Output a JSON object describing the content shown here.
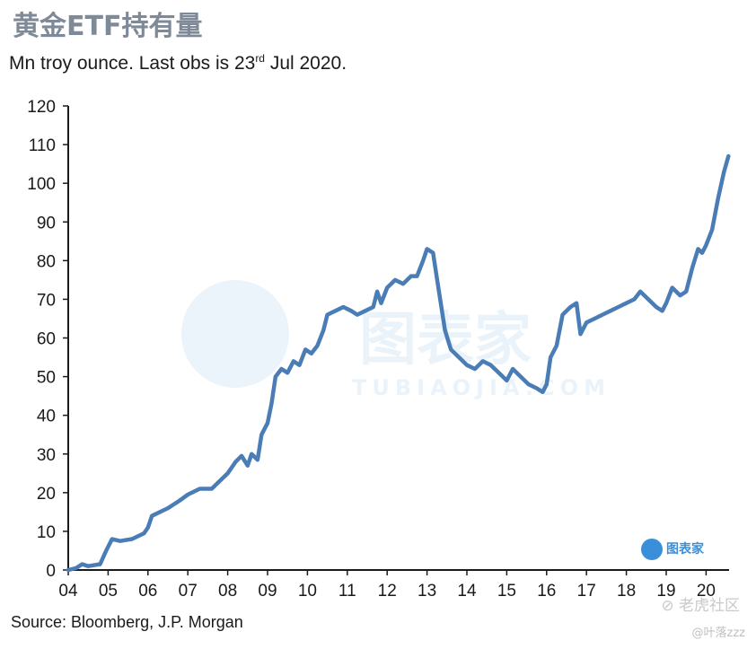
{
  "header": {
    "title": "黄金ETF持有量",
    "subtitle_main": "Mn troy ounce. Last obs is 23",
    "subtitle_sup": "rd",
    "subtitle_end": " Jul 2020."
  },
  "footer": {
    "source": "Source: Bloomberg, J.P. Morgan",
    "watermark_main": "⊘ 老虎社区",
    "watermark_user": "@叶落zzz",
    "logo_text": "图表家",
    "center_watermark": "图表家",
    "center_watermark_sub": "TUBIAOJIA.COM"
  },
  "chart_data": {
    "type": "line",
    "title": "黄金ETF持有量",
    "subtitle": "Mn troy ounce. Last obs is 23rd Jul 2020.",
    "xlabel": "",
    "ylabel": "",
    "ylim": [
      0,
      120
    ],
    "xlim": [
      2004.0,
      2020.75
    ],
    "grid": false,
    "yticks": [
      0,
      10,
      20,
      30,
      40,
      50,
      60,
      70,
      80,
      90,
      100,
      110,
      120
    ],
    "xticks": [
      {
        "value": 2004,
        "label": "04"
      },
      {
        "value": 2005,
        "label": "05"
      },
      {
        "value": 2006,
        "label": "06"
      },
      {
        "value": 2007,
        "label": "07"
      },
      {
        "value": 2008,
        "label": "08"
      },
      {
        "value": 2009,
        "label": "09"
      },
      {
        "value": 2010,
        "label": "10"
      },
      {
        "value": 2011,
        "label": "11"
      },
      {
        "value": 2012,
        "label": "12"
      },
      {
        "value": 2013,
        "label": "13"
      },
      {
        "value": 2014,
        "label": "14"
      },
      {
        "value": 2015,
        "label": "15"
      },
      {
        "value": 2016,
        "label": "16"
      },
      {
        "value": 2017,
        "label": "17"
      },
      {
        "value": 2018,
        "label": "18"
      },
      {
        "value": 2019,
        "label": "19"
      },
      {
        "value": 2020,
        "label": "20"
      }
    ],
    "series": [
      {
        "color": "#4a7db5",
        "points": [
          [
            2004.0,
            0
          ],
          [
            2004.2,
            0.5
          ],
          [
            2004.35,
            1.5
          ],
          [
            2004.5,
            1
          ],
          [
            2004.8,
            1.5
          ],
          [
            2004.95,
            5
          ],
          [
            2005.1,
            8
          ],
          [
            2005.3,
            7.5
          ],
          [
            2005.6,
            8
          ],
          [
            2005.9,
            9.5
          ],
          [
            2006.0,
            11
          ],
          [
            2006.1,
            14
          ],
          [
            2006.3,
            15
          ],
          [
            2006.5,
            16
          ],
          [
            2006.8,
            18
          ],
          [
            2007.0,
            19.5
          ],
          [
            2007.3,
            21
          ],
          [
            2007.6,
            21
          ],
          [
            2007.8,
            23
          ],
          [
            2008.0,
            25
          ],
          [
            2008.2,
            28
          ],
          [
            2008.35,
            29.5
          ],
          [
            2008.5,
            27
          ],
          [
            2008.6,
            30
          ],
          [
            2008.75,
            28.5
          ],
          [
            2008.85,
            35
          ],
          [
            2009.0,
            38
          ],
          [
            2009.1,
            43
          ],
          [
            2009.2,
            50
          ],
          [
            2009.35,
            52
          ],
          [
            2009.5,
            51
          ],
          [
            2009.65,
            54
          ],
          [
            2009.8,
            53
          ],
          [
            2009.95,
            57
          ],
          [
            2010.1,
            56
          ],
          [
            2010.25,
            58
          ],
          [
            2010.4,
            62
          ],
          [
            2010.5,
            66
          ],
          [
            2010.7,
            67
          ],
          [
            2010.9,
            68
          ],
          [
            2011.1,
            67
          ],
          [
            2011.25,
            66
          ],
          [
            2011.45,
            67
          ],
          [
            2011.65,
            68
          ],
          [
            2011.75,
            72
          ],
          [
            2011.85,
            69
          ],
          [
            2012.0,
            73
          ],
          [
            2012.2,
            75
          ],
          [
            2012.4,
            74
          ],
          [
            2012.6,
            76
          ],
          [
            2012.75,
            76
          ],
          [
            2012.9,
            80
          ],
          [
            2013.0,
            83
          ],
          [
            2013.15,
            82
          ],
          [
            2013.3,
            72
          ],
          [
            2013.45,
            62
          ],
          [
            2013.6,
            57
          ],
          [
            2013.8,
            55
          ],
          [
            2014.0,
            53
          ],
          [
            2014.2,
            52
          ],
          [
            2014.4,
            54
          ],
          [
            2014.6,
            53
          ],
          [
            2014.8,
            51
          ],
          [
            2015.0,
            49
          ],
          [
            2015.15,
            52
          ],
          [
            2015.35,
            50
          ],
          [
            2015.55,
            48
          ],
          [
            2015.75,
            47
          ],
          [
            2015.9,
            46
          ],
          [
            2016.0,
            48
          ],
          [
            2016.1,
            55
          ],
          [
            2016.25,
            58
          ],
          [
            2016.4,
            66
          ],
          [
            2016.6,
            68
          ],
          [
            2016.75,
            69
          ],
          [
            2016.85,
            61
          ],
          [
            2017.0,
            64
          ],
          [
            2017.2,
            65
          ],
          [
            2017.4,
            66
          ],
          [
            2017.6,
            67
          ],
          [
            2017.8,
            68
          ],
          [
            2018.0,
            69
          ],
          [
            2018.2,
            70
          ],
          [
            2018.35,
            72
          ],
          [
            2018.55,
            70
          ],
          [
            2018.75,
            68
          ],
          [
            2018.9,
            67
          ],
          [
            2019.0,
            69
          ],
          [
            2019.15,
            73
          ],
          [
            2019.35,
            71
          ],
          [
            2019.5,
            72
          ],
          [
            2019.65,
            78
          ],
          [
            2019.8,
            83
          ],
          [
            2019.9,
            82
          ],
          [
            2020.0,
            84
          ],
          [
            2020.15,
            88
          ],
          [
            2020.3,
            96
          ],
          [
            2020.45,
            103
          ],
          [
            2020.56,
            107
          ]
        ]
      }
    ]
  }
}
